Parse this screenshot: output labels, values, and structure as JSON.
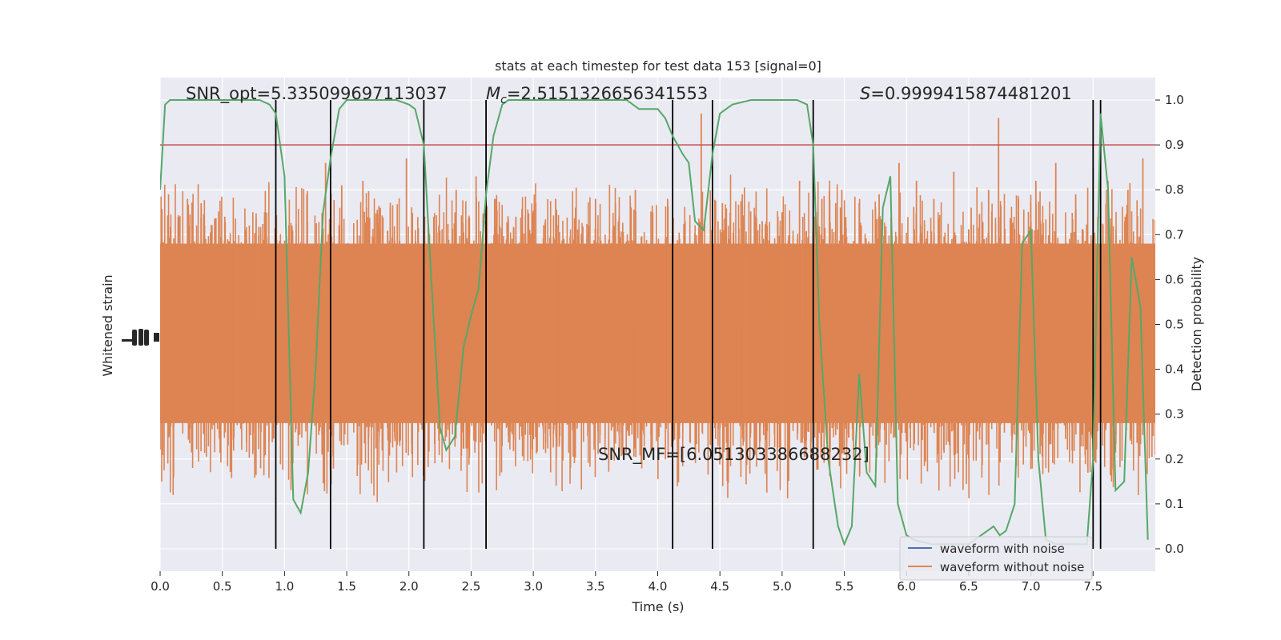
{
  "chart_data": {
    "type": "line",
    "title": "stats at each timestep for test data 153 [signal=0]",
    "xlabel": "Time (s)",
    "ylabel_left": "Whitened strain",
    "ylabel_right": "Detection probability",
    "xlim": [
      0,
      8
    ],
    "ylim_right": [
      -0.05,
      1.05
    ],
    "x_ticks": [
      "0.0",
      "0.5",
      "1.0",
      "1.5",
      "2.0",
      "2.5",
      "3.0",
      "3.5",
      "4.0",
      "4.5",
      "5.0",
      "5.5",
      "6.0",
      "6.5",
      "7.0",
      "7.5"
    ],
    "y_ticks_right": [
      "0.0",
      "0.1",
      "0.2",
      "0.3",
      "0.4",
      "0.5",
      "0.6",
      "0.7",
      "0.8",
      "0.9",
      "1.0"
    ],
    "grid": true,
    "legend_position": "lower right",
    "legend": [
      {
        "label": "waveform with noise",
        "color": "#4c72b0"
      },
      {
        "label": "waveform without noise",
        "color": "#dd8452"
      }
    ],
    "annotations": {
      "snr_opt": "SNR_opt=5.335099697113037",
      "mc": "=2.5151326656341553",
      "s": "=0.9999415874481201",
      "snr_mf": "SNR_MF=[6.051303386688232]"
    },
    "threshold": {
      "value": 0.9,
      "color": "#c44e52"
    },
    "vertical_lines_x": [
      0.93,
      1.37,
      2.12,
      2.62,
      4.12,
      4.44,
      5.25,
      7.5,
      7.56
    ],
    "detection_probability": {
      "color": "#55a868",
      "x": [
        0.0,
        0.04,
        0.08,
        0.12,
        0.2,
        0.4,
        0.6,
        0.8,
        0.88,
        0.93,
        1.0,
        1.07,
        1.13,
        1.19,
        1.25,
        1.31,
        1.37,
        1.44,
        1.5,
        1.6,
        1.8,
        1.9,
        2.0,
        2.05,
        2.12,
        2.18,
        2.25,
        2.3,
        2.37,
        2.44,
        2.5,
        2.56,
        2.62,
        2.68,
        2.75,
        2.8,
        2.9,
        3.2,
        3.5,
        3.75,
        3.85,
        4.0,
        4.06,
        4.12,
        4.2,
        4.25,
        4.3,
        4.37,
        4.44,
        4.5,
        4.6,
        4.75,
        5.0,
        5.12,
        5.2,
        5.25,
        5.3,
        5.37,
        5.45,
        5.5,
        5.56,
        5.62,
        5.68,
        5.75,
        5.81,
        5.87,
        5.93,
        6.0,
        6.06,
        6.2,
        6.5,
        6.6,
        6.7,
        6.75,
        6.8,
        6.87,
        6.93,
        7.0,
        7.06,
        7.12,
        7.2,
        7.3,
        7.45,
        7.5,
        7.56,
        7.62,
        7.68,
        7.75,
        7.81,
        7.88,
        7.94
      ],
      "y": [
        0.8,
        0.99,
        1.0,
        1.0,
        1.0,
        1.0,
        1.0,
        1.0,
        0.99,
        0.97,
        0.83,
        0.11,
        0.08,
        0.17,
        0.4,
        0.75,
        0.87,
        0.98,
        1.0,
        1.0,
        1.0,
        1.0,
        0.99,
        0.98,
        0.9,
        0.6,
        0.27,
        0.22,
        0.25,
        0.45,
        0.52,
        0.58,
        0.79,
        0.92,
        0.99,
        1.0,
        1.0,
        1.0,
        1.0,
        1.0,
        0.98,
        0.98,
        0.96,
        0.92,
        0.88,
        0.86,
        0.73,
        0.71,
        0.88,
        0.97,
        0.99,
        1.0,
        1.0,
        1.0,
        0.99,
        0.9,
        0.5,
        0.2,
        0.05,
        0.01,
        0.05,
        0.39,
        0.17,
        0.14,
        0.76,
        0.83,
        0.1,
        0.03,
        0.02,
        0.01,
        0.01,
        0.03,
        0.05,
        0.03,
        0.04,
        0.1,
        0.68,
        0.71,
        0.2,
        0.02,
        0.01,
        0.01,
        0.01,
        0.2,
        0.97,
        0.8,
        0.13,
        0.15,
        0.65,
        0.54,
        0.02
      ]
    },
    "noise_spikes": {
      "color": "#dd8452",
      "x": [
        0.05,
        0.22,
        0.33,
        0.52,
        0.69,
        0.84,
        1.06,
        1.18,
        1.33,
        1.46,
        1.63,
        1.77,
        1.85,
        1.98,
        2.2,
        2.38,
        2.54,
        2.7,
        2.86,
        3.02,
        3.18,
        3.34,
        3.5,
        3.66,
        3.82,
        3.96,
        4.08,
        4.22,
        4.35,
        4.52,
        4.68,
        4.84,
        5.0,
        5.14,
        5.32,
        5.48,
        5.62,
        5.78,
        5.94,
        6.08,
        6.22,
        6.38,
        6.52,
        6.66,
        6.74,
        6.9,
        7.04,
        7.2,
        7.36,
        7.5,
        7.62,
        7.78,
        7.9
      ],
      "y": [
        0.66,
        0.78,
        0.77,
        0.74,
        0.71,
        0.75,
        0.72,
        0.79,
        0.86,
        0.81,
        0.82,
        0.76,
        0.76,
        0.87,
        0.74,
        0.8,
        0.83,
        0.78,
        0.74,
        0.77,
        0.78,
        0.76,
        0.78,
        0.77,
        0.8,
        0.75,
        0.78,
        0.73,
        0.97,
        0.77,
        0.79,
        0.73,
        0.75,
        0.82,
        0.78,
        0.8,
        0.77,
        0.79,
        0.86,
        0.82,
        0.78,
        0.84,
        0.76,
        0.8,
        0.96,
        0.78,
        0.82,
        0.86,
        0.79,
        0.85,
        0.82,
        0.8,
        0.87
      ]
    }
  }
}
